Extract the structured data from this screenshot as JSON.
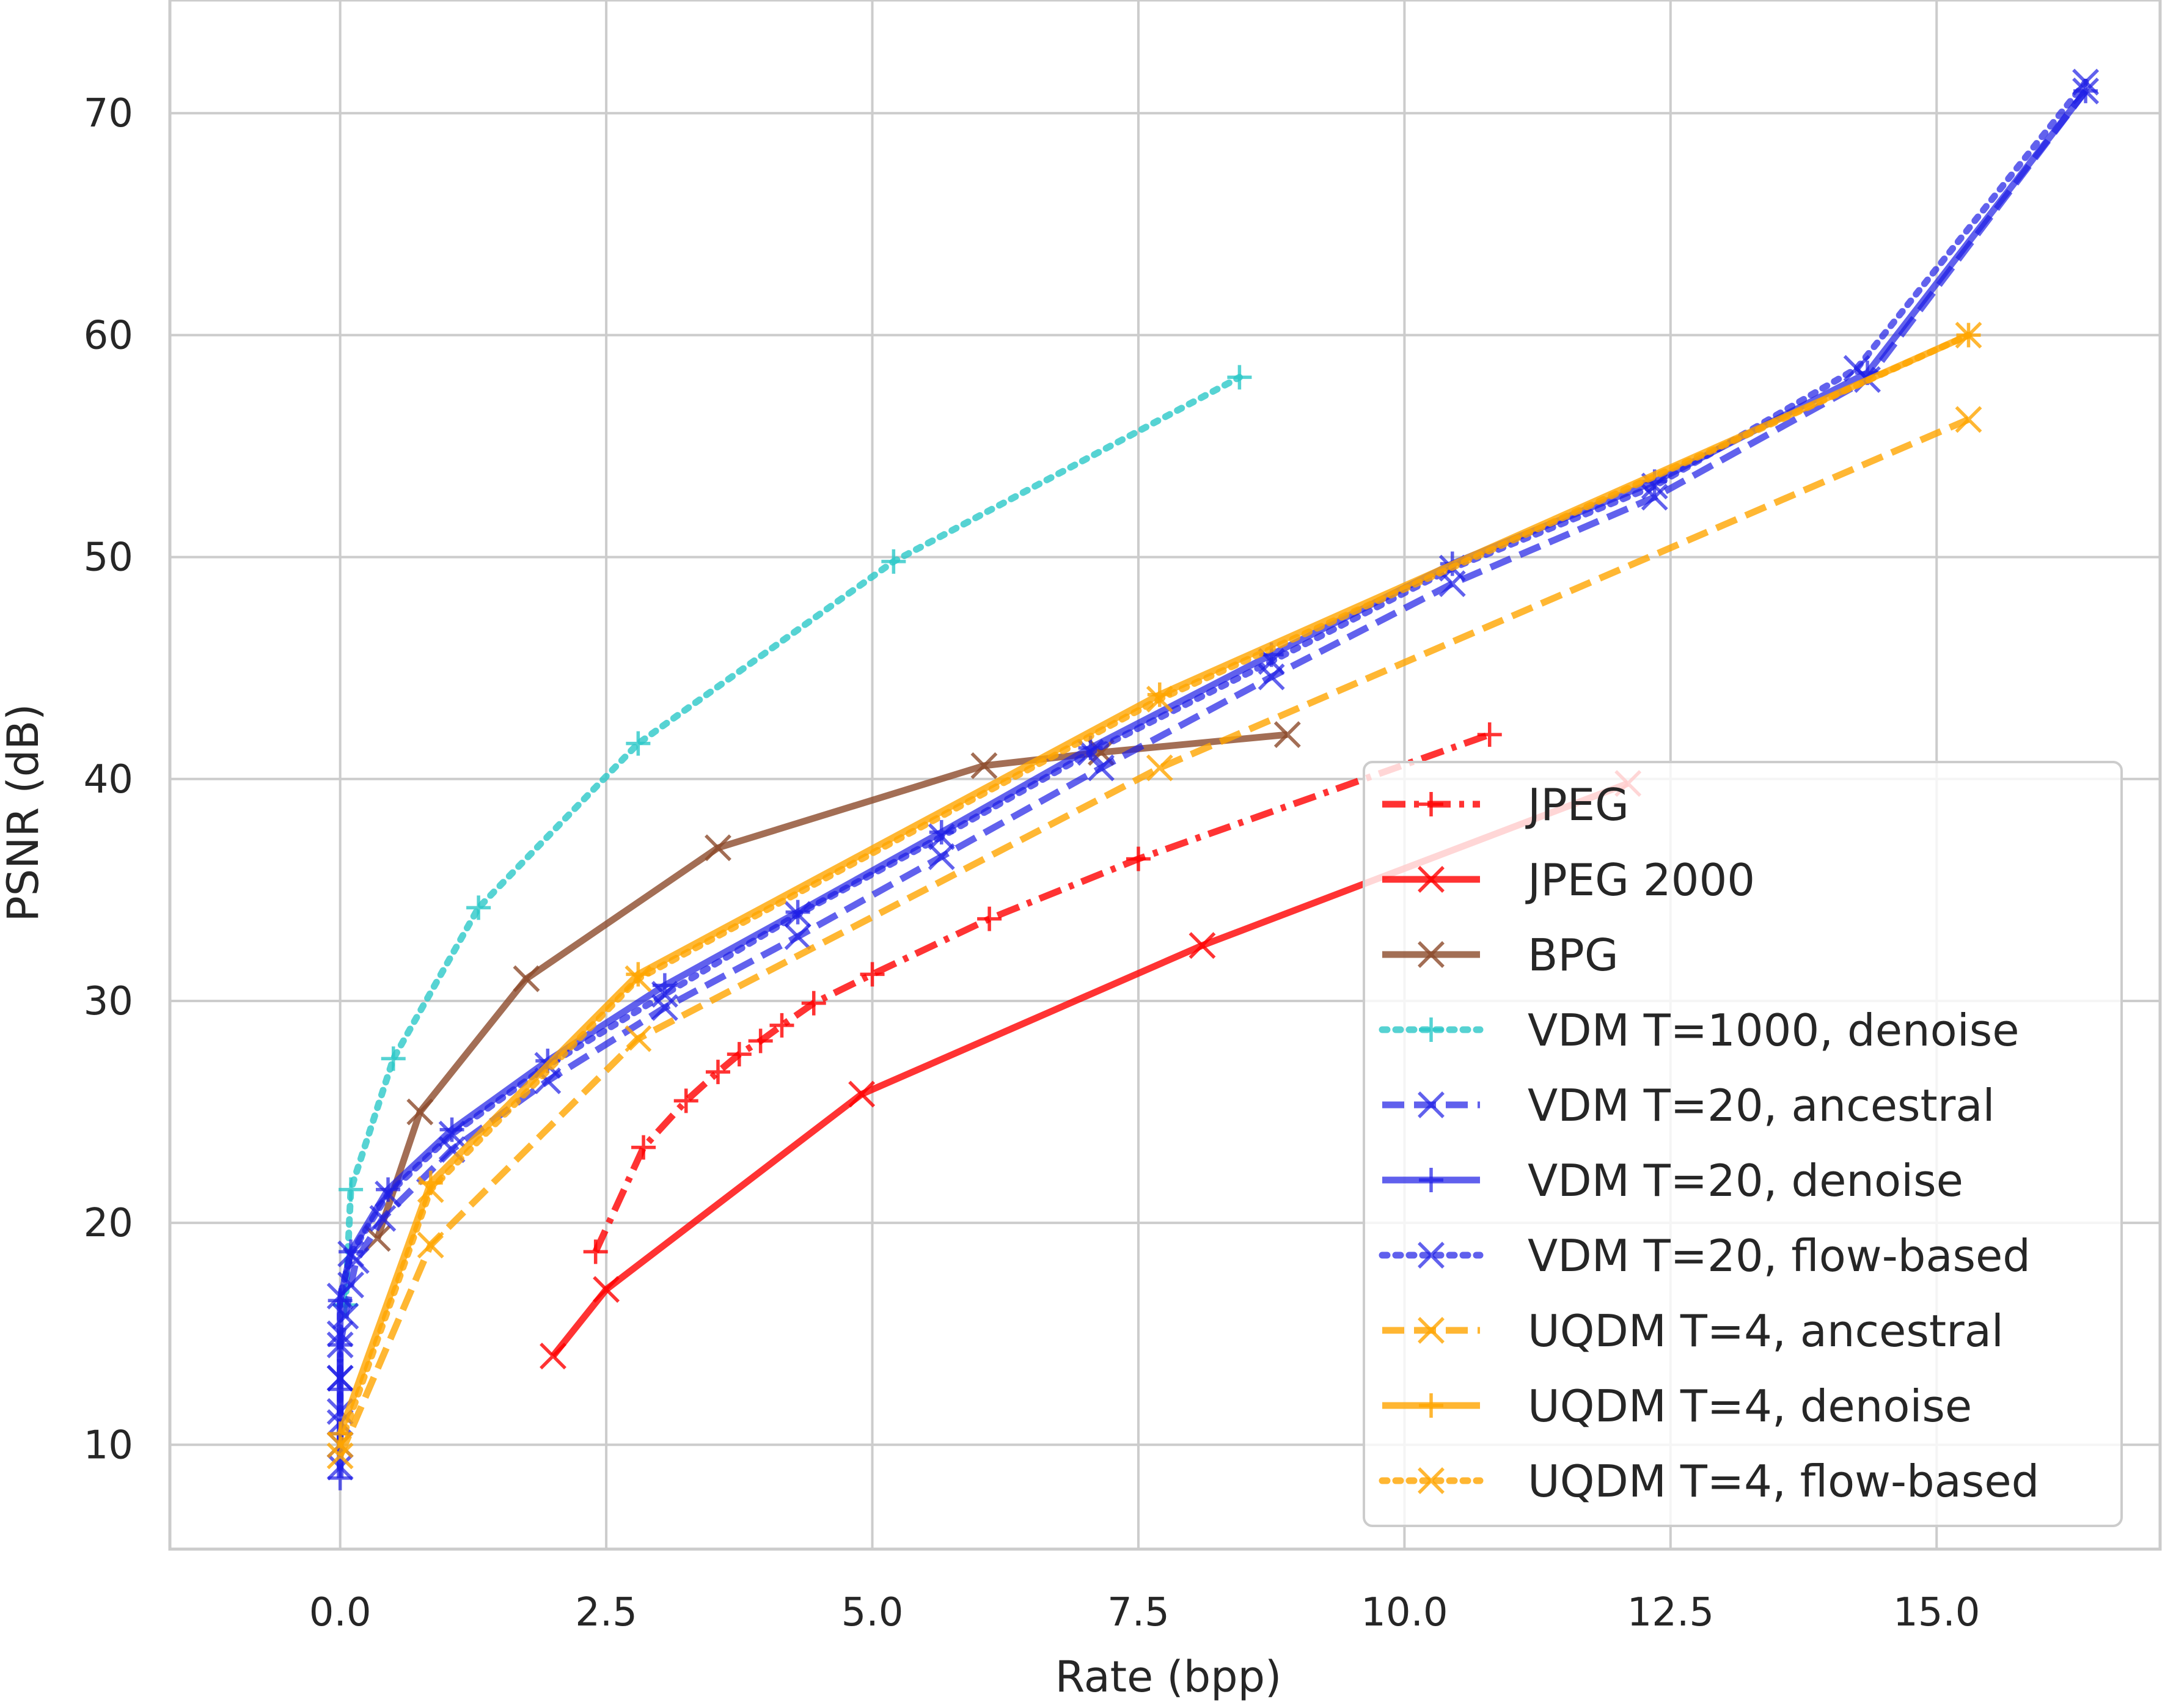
{
  "chart_data": {
    "type": "line",
    "title": "",
    "xlabel": "Rate (bpp)",
    "ylabel": "PSNR (dB)",
    "xlim": [
      -1.6,
      17.1
    ],
    "ylim": [
      5.3,
      75.1
    ],
    "xticks": [
      "0.0",
      "2.5",
      "5.0",
      "7.5",
      "10.0",
      "12.5",
      "15.0"
    ],
    "xtick_values": [
      0,
      2.5,
      5,
      7.5,
      10,
      12.5,
      15
    ],
    "yticks": [
      "10",
      "20",
      "30",
      "40",
      "50",
      "60",
      "70"
    ],
    "ytick_values": [
      10,
      20,
      30,
      40,
      50,
      60,
      70
    ],
    "grid": true,
    "legend_position": "lower-right",
    "series": [
      {
        "name": "JPEG",
        "color": "#ff0000",
        "dash": "dashdot",
        "marker": "+",
        "alpha": 0.8,
        "x": [
          2.4,
          2.85,
          3.25,
          3.55,
          3.75,
          3.95,
          4.15,
          4.45,
          5.0,
          6.1,
          7.5,
          10.8
        ],
        "y": [
          18.7,
          23.4,
          25.5,
          26.8,
          27.6,
          28.2,
          28.9,
          29.9,
          31.2,
          33.7,
          36.4,
          42.0
        ]
      },
      {
        "name": "JPEG 2000",
        "color": "#ff0000",
        "dash": "solid",
        "marker": "x",
        "alpha": 0.8,
        "x": [
          2.0,
          2.5,
          4.9,
          8.1,
          12.1
        ],
        "y": [
          14.0,
          17.0,
          25.8,
          32.5,
          39.8
        ]
      },
      {
        "name": "BPG",
        "color": "#8c4a2a",
        "dash": "solid",
        "marker": "x",
        "alpha": 0.8,
        "x": [
          0.35,
          0.75,
          1.75,
          3.55,
          6.05,
          7.15,
          8.9
        ],
        "y": [
          19.3,
          25.0,
          31.0,
          36.9,
          40.6,
          41.2,
          42.0
        ]
      },
      {
        "name": "VDM T=1000, denoise",
        "color": "#2cc8c8",
        "dash": "dotted",
        "marker": "+",
        "alpha": 0.8,
        "x": [
          0.05,
          0.1,
          0.5,
          1.3,
          2.8,
          5.2,
          8.45
        ],
        "y": [
          16.3,
          21.5,
          27.4,
          34.2,
          41.6,
          49.8,
          58.1
        ]
      },
      {
        "name": "VDM T=20, ancestral",
        "color": "#1e1ee6",
        "dash": "dashed",
        "marker": "x",
        "alpha": 0.7,
        "x": [
          0,
          0,
          0,
          0,
          0.05,
          0.1,
          0.15,
          0.4,
          1.05,
          1.95,
          3.05,
          4.3,
          5.65,
          7.15,
          8.75,
          10.45,
          12.35,
          14.35,
          16.4
        ],
        "y": [
          10.0,
          11.5,
          13.0,
          14.5,
          15.8,
          17.2,
          18.3,
          20.2,
          23.3,
          26.4,
          29.7,
          32.9,
          36.5,
          40.5,
          44.6,
          48.8,
          52.7,
          58.0,
          71.0
        ]
      },
      {
        "name": "VDM T=20, denoise",
        "color": "#1e1ee6",
        "dash": "solid",
        "marker": "+",
        "alpha": 0.7,
        "x": [
          0,
          0,
          0,
          0,
          0,
          0.1,
          0.45,
          1.05,
          1.95,
          3.05,
          4.3,
          5.65,
          7.05,
          8.75,
          10.45,
          12.35,
          14.35,
          16.4
        ],
        "y": [
          8.5,
          10.5,
          12.5,
          14.5,
          16.5,
          18.7,
          21.5,
          24.2,
          27.3,
          30.7,
          34.0,
          37.6,
          41.4,
          45.6,
          49.7,
          53.4,
          58.3,
          71.0
        ]
      },
      {
        "name": "VDM T=20, flow-based",
        "color": "#1e1ee6",
        "dash": "dotted",
        "marker": "x",
        "alpha": 0.7,
        "x": [
          0,
          0,
          0,
          0,
          0,
          0.1,
          0.45,
          1.05,
          1.95,
          3.05,
          4.3,
          5.65,
          7.05,
          8.75,
          10.45,
          12.35,
          14.25,
          16.4
        ],
        "y": [
          9.0,
          11.0,
          13.0,
          15.0,
          16.7,
          18.6,
          21.3,
          24.0,
          27.1,
          30.3,
          33.9,
          37.4,
          41.2,
          45.3,
          49.5,
          53.2,
          58.5,
          71.4
        ]
      },
      {
        "name": "UQDM T=4, ancestral",
        "color": "#ffa500",
        "dash": "dashed",
        "marker": "x",
        "alpha": 0.8,
        "x": [
          0,
          0.85,
          2.8,
          7.7,
          15.3
        ],
        "y": [
          9.5,
          19.0,
          28.3,
          40.5,
          56.2
        ]
      },
      {
        "name": "UQDM T=4, denoise",
        "color": "#ffa500",
        "dash": "solid",
        "marker": "+",
        "alpha": 0.8,
        "x": [
          0,
          0.85,
          2.8,
          7.7,
          15.3
        ],
        "y": [
          10.5,
          21.8,
          31.2,
          43.8,
          60.0
        ]
      },
      {
        "name": "UQDM T=4, flow-based",
        "color": "#ffa500",
        "dash": "dotted",
        "marker": "x",
        "alpha": 0.8,
        "x": [
          0,
          0.85,
          2.8,
          7.7,
          15.3
        ],
        "y": [
          10.0,
          21.5,
          31.0,
          43.6,
          60.0
        ]
      }
    ]
  }
}
